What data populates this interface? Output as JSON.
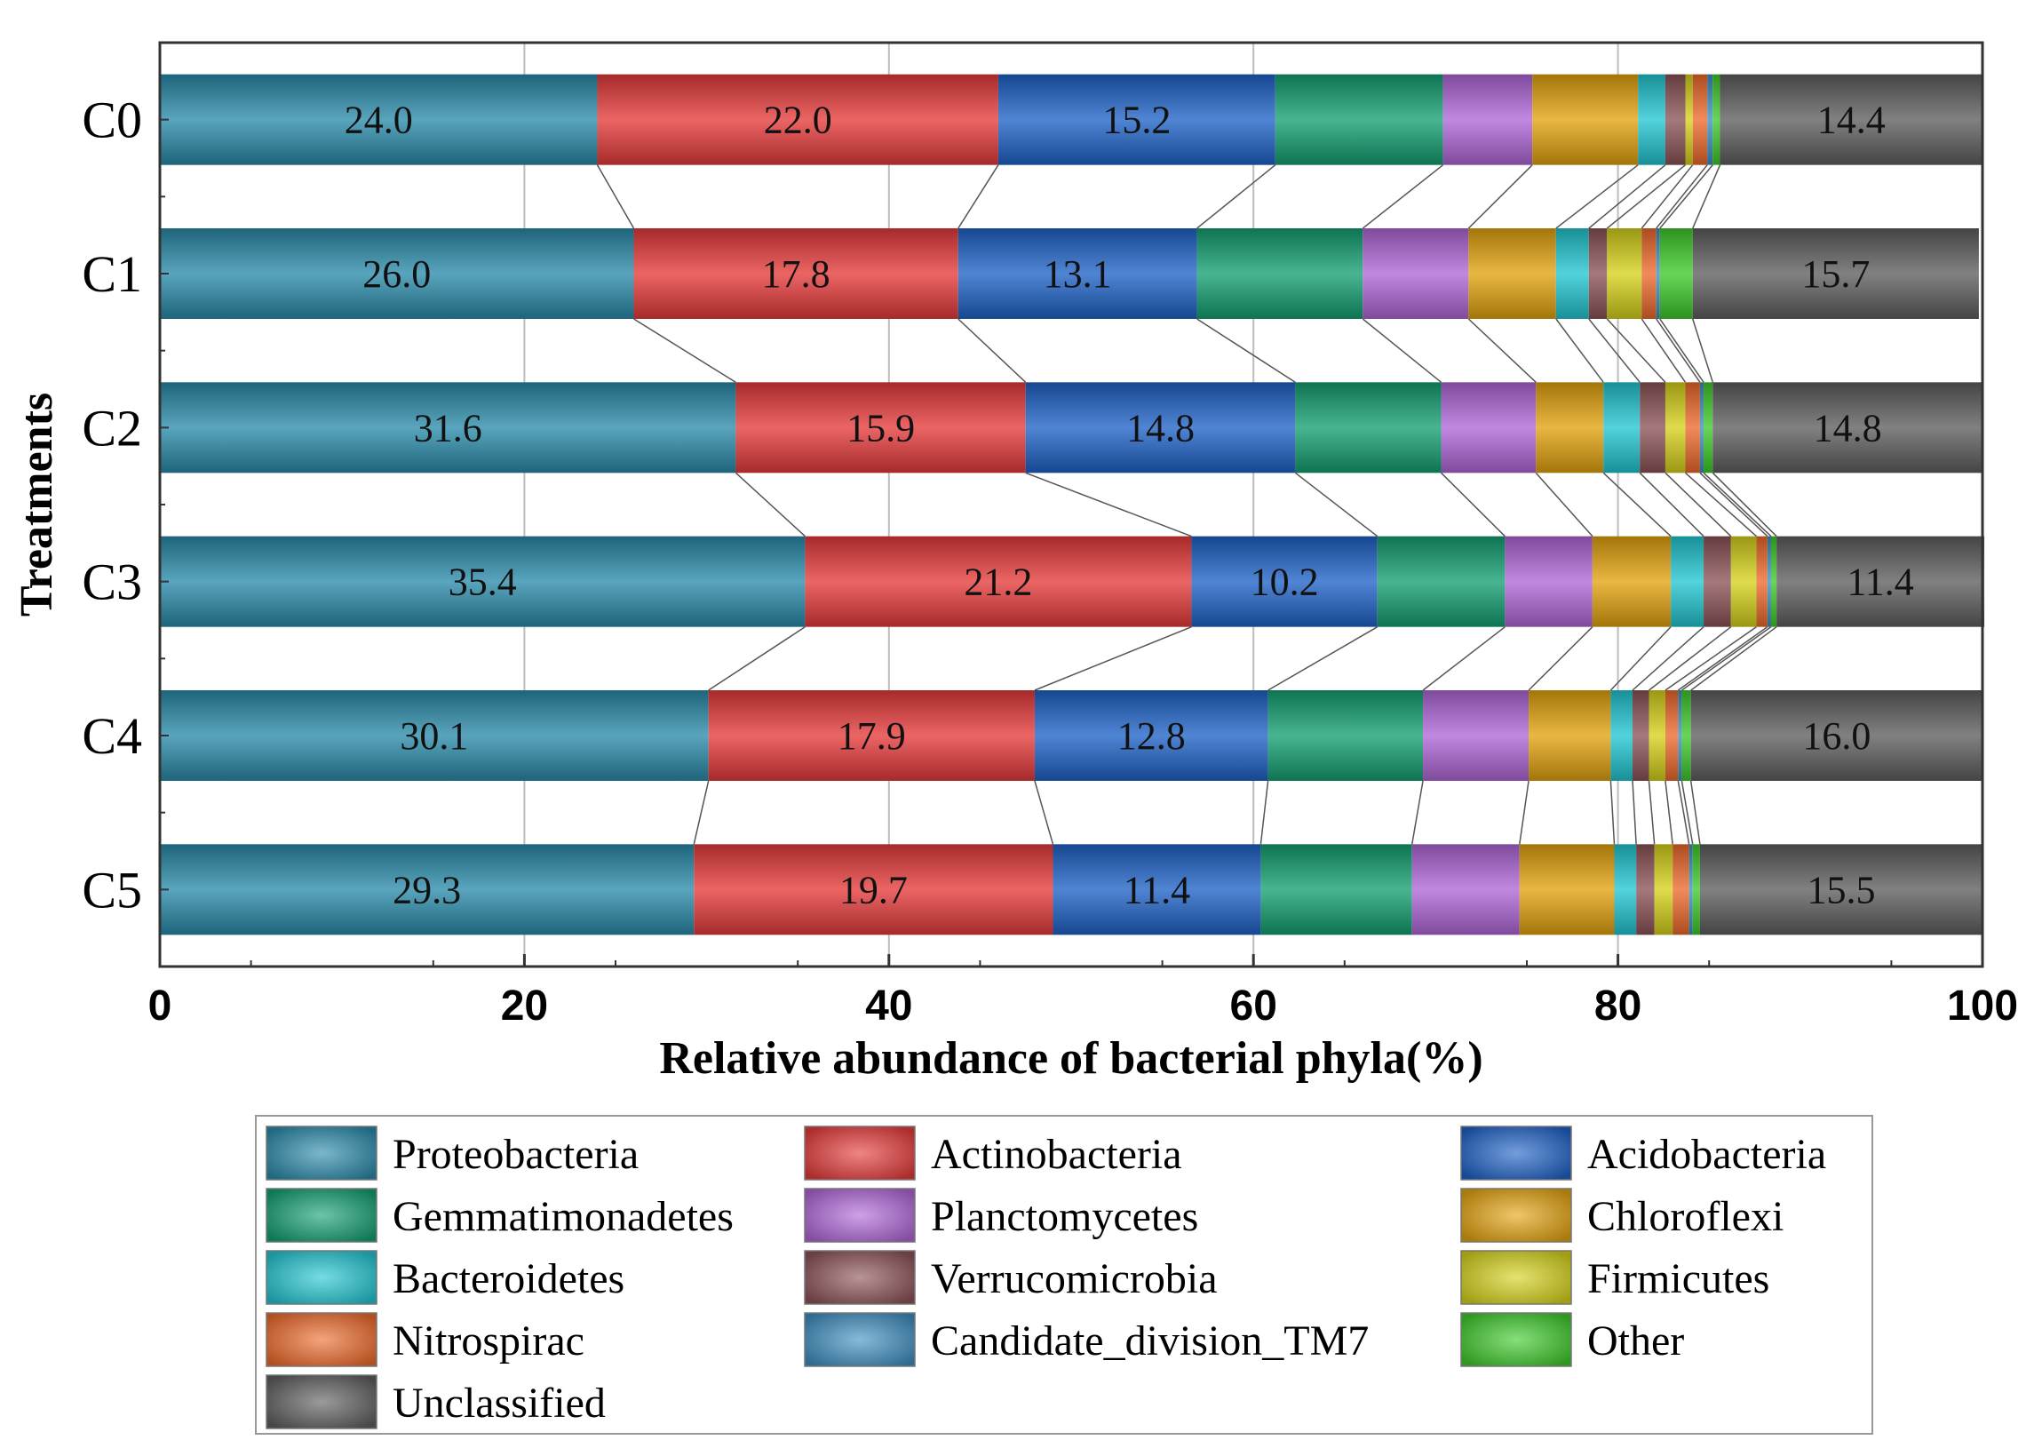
{
  "chart_data": {
    "type": "bar",
    "orientation": "horizontal",
    "stacked": true,
    "categories": [
      "C0",
      "C1",
      "C2",
      "C3",
      "C4",
      "C5"
    ],
    "xlabel": "Relative abundance of bacterial phyla(%)",
    "ylabel": "Treatments",
    "xlim": [
      0,
      100
    ],
    "xticks": [
      "0",
      "20",
      "40",
      "60",
      "80",
      "100"
    ],
    "grid": "vertical",
    "legend": "bottom",
    "series": [
      {
        "name": "Proteobacteria",
        "color": "#2a8bab",
        "values": [
          24.0,
          26.0,
          31.6,
          35.4,
          30.1,
          29.3
        ],
        "labels": [
          "24.0",
          "26.0",
          "31.6",
          "35.4",
          "30.1",
          "29.3"
        ]
      },
      {
        "name": "Actinobacteria",
        "color": "#e63a3a",
        "values": [
          22.0,
          17.8,
          15.9,
          21.2,
          17.9,
          19.7
        ],
        "labels": [
          "22.0",
          "17.8",
          "15.9",
          "21.2",
          "17.9",
          "19.7"
        ]
      },
      {
        "name": "Acidobacteria",
        "color": "#1f62c8",
        "values": [
          15.2,
          13.1,
          14.8,
          10.2,
          12.8,
          11.4
        ],
        "labels": [
          "15.2",
          "13.1",
          "14.8",
          "10.2",
          "12.8",
          "11.4"
        ]
      },
      {
        "name": "Gemmatimonadetes",
        "color": "#14a072",
        "values": [
          9.2,
          9.1,
          8.0,
          7.0,
          8.5,
          8.3
        ]
      },
      {
        "name": "Planctomycetes",
        "color": "#b067d8",
        "values": [
          4.9,
          5.8,
          5.2,
          4.8,
          5.8,
          5.9
        ]
      },
      {
        "name": "Chloroflexi",
        "color": "#e3a30e",
        "values": [
          5.8,
          4.8,
          3.7,
          4.3,
          4.5,
          5.2
        ]
      },
      {
        "name": "Bacteroidetes",
        "color": "#22c7d2",
        "values": [
          1.5,
          1.8,
          2.0,
          1.8,
          1.2,
          1.2
        ]
      },
      {
        "name": "Verrucomicrobia",
        "color": "#8c5356",
        "values": [
          1.1,
          1.0,
          1.4,
          1.5,
          0.9,
          1.0
        ]
      },
      {
        "name": "Firmicutes",
        "color": "#d6d21a",
        "values": [
          0.4,
          1.9,
          1.1,
          1.4,
          0.9,
          1.0
        ]
      },
      {
        "name": "Nitrospirac",
        "color": "#ee6a2b",
        "values": [
          0.8,
          0.8,
          0.8,
          0.6,
          0.7,
          0.9
        ]
      },
      {
        "name": "Candidate_division_TM7",
        "color": "#3f8fc0",
        "values": [
          0.3,
          0.2,
          0.2,
          0.2,
          0.2,
          0.2
        ]
      },
      {
        "name": "Other",
        "color": "#3ecb2a",
        "values": [
          0.4,
          1.8,
          0.5,
          0.3,
          0.5,
          0.4
        ]
      },
      {
        "name": "Unclassified",
        "color": "#5e5e5e",
        "values": [
          14.4,
          15.7,
          14.8,
          11.4,
          16.0,
          15.5
        ],
        "labels": [
          "14.4",
          "15.7",
          "14.8",
          "11.4",
          "16.0",
          "15.5"
        ]
      }
    ]
  }
}
